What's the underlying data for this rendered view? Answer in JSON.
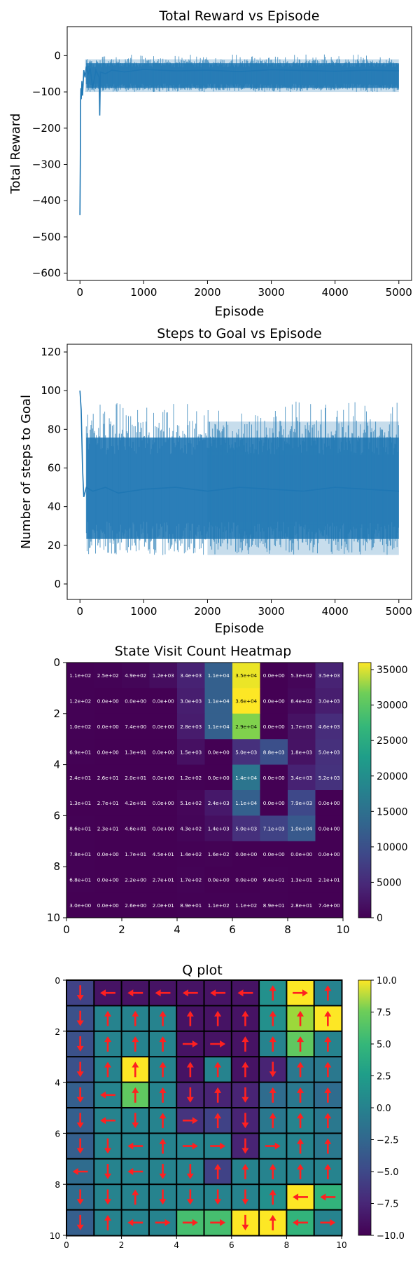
{
  "chart_data": [
    {
      "type": "line",
      "title": "Total Reward vs Episode",
      "xlabel": "Episode",
      "ylabel": "Total Reward",
      "xlim": [
        -200,
        5200
      ],
      "ylim": [
        -620,
        80
      ],
      "xticks": [
        0,
        1000,
        2000,
        3000,
        4000,
        5000
      ],
      "yticks": [
        0,
        -100,
        -200,
        -300,
        -400,
        -500,
        -600
      ],
      "color": "#1f77b4",
      "series": [
        {
          "x": [
            0,
            5,
            10,
            15,
            20,
            25,
            30,
            40,
            50,
            60,
            80,
            100,
            130,
            160,
            200,
            250,
            300,
            310,
            320,
            400,
            500,
            700,
            1000,
            1500,
            2000,
            2500,
            3000,
            3500,
            4000,
            4500,
            5000
          ],
          "y": [
            -440,
            -300,
            -130,
            -90,
            -120,
            -100,
            -70,
            -110,
            -80,
            -40,
            -60,
            -30,
            -50,
            -35,
            -90,
            -40,
            -60,
            -165,
            -45,
            -50,
            -40,
            -45,
            -38,
            -42,
            -40,
            -44,
            -39,
            -41,
            -43,
            -40,
            -42
          ],
          "band_upper": -10,
          "band_lower": -100
        }
      ]
    },
    {
      "type": "line",
      "title": "Steps to Goal vs Episode",
      "xlabel": "Episode",
      "ylabel": "Number of steps to Goal",
      "xlim": [
        -200,
        5200
      ],
      "ylim": [
        -8,
        124
      ],
      "xticks": [
        0,
        1000,
        2000,
        3000,
        4000,
        5000
      ],
      "yticks": [
        0,
        20,
        40,
        60,
        80,
        100,
        120
      ],
      "color": "#1f77b4",
      "series": [
        {
          "x": [
            0,
            20,
            40,
            60,
            100,
            200,
            400,
            600,
            1000,
            1500,
            2000,
            2500,
            3000,
            3500,
            4000,
            4500,
            5000
          ],
          "y": [
            100,
            90,
            60,
            45,
            50,
            48,
            50,
            47,
            49,
            50,
            48,
            50,
            49,
            48,
            50,
            49,
            48
          ],
          "band_upper": 84,
          "band_lower": 15
        }
      ]
    },
    {
      "type": "heatmap",
      "title": "State Visit Count Heatmap",
      "xlim": [
        0,
        10
      ],
      "ylim": [
        10,
        0
      ],
      "xticks": [
        0,
        2,
        4,
        6,
        8,
        10
      ],
      "yticks": [
        0,
        2,
        4,
        6,
        8,
        10
      ],
      "colorbar_ticks": [
        0,
        5000,
        10000,
        15000,
        20000,
        25000,
        30000,
        35000
      ],
      "vmin": 0,
      "vmax": 36000,
      "values": [
        [
          110,
          250,
          490,
          1200,
          3400,
          11000,
          35000,
          0,
          530,
          3500
        ],
        [
          120,
          0,
          0,
          0,
          3000,
          11000,
          36000,
          0,
          840,
          3000
        ],
        [
          100,
          0,
          7.4,
          0,
          2800,
          11000,
          29000,
          0,
          1700,
          4600
        ],
        [
          69,
          0,
          13,
          0,
          1500,
          0,
          5000,
          8800,
          1800,
          5000
        ],
        [
          24,
          26,
          20,
          0,
          120,
          0,
          14000,
          0,
          3400,
          5200
        ],
        [
          13,
          27,
          42,
          0,
          510,
          2400,
          11000,
          0,
          7900,
          0
        ],
        [
          86,
          23,
          46,
          0,
          430,
          1400,
          5000,
          7100,
          10000,
          0
        ],
        [
          78,
          0,
          17,
          45,
          140,
          160,
          0,
          0,
          0,
          0
        ],
        [
          68,
          0,
          2.2,
          27,
          170,
          0,
          0,
          94,
          13,
          21
        ],
        [
          3,
          0,
          2.6,
          20,
          89,
          110,
          110,
          89,
          28,
          7.4
        ]
      ],
      "labels": [
        [
          "1.1e+02",
          "2.5e+02",
          "4.9e+02",
          "1.2e+03",
          "3.4e+03",
          "1.1e+04",
          "3.5e+04",
          "0.0e+00",
          "5.3e+02",
          "3.5e+03"
        ],
        [
          "1.2e+02",
          "0.0e+00",
          "0.0e+00",
          "0.0e+00",
          "3.0e+03",
          "1.1e+04",
          "3.6e+04",
          "0.0e+00",
          "8.4e+02",
          "3.0e+03"
        ],
        [
          "1.0e+02",
          "0.0e+00",
          "7.4e+00",
          "0.0e+00",
          "2.8e+03",
          "1.1e+04",
          "2.9e+04",
          "0.0e+00",
          "1.7e+03",
          "4.6e+03"
        ],
        [
          "6.9e+01",
          "0.0e+00",
          "1.3e+01",
          "0.0e+00",
          "1.5e+03",
          "0.0e+00",
          "5.0e+03",
          "8.8e+03",
          "1.8e+03",
          "5.0e+03"
        ],
        [
          "2.4e+01",
          "2.6e+01",
          "2.0e+01",
          "0.0e+00",
          "1.2e+02",
          "0.0e+00",
          "1.4e+04",
          "0.0e+00",
          "3.4e+03",
          "5.2e+03"
        ],
        [
          "1.3e+01",
          "2.7e+01",
          "4.2e+01",
          "0.0e+00",
          "5.1e+02",
          "2.4e+03",
          "1.1e+04",
          "0.0e+00",
          "7.9e+03",
          "0.0e+00"
        ],
        [
          "8.6e+01",
          "2.3e+01",
          "4.6e+01",
          "0.0e+00",
          "4.3e+02",
          "1.4e+03",
          "5.0e+03",
          "7.1e+03",
          "1.0e+04",
          "0.0e+00"
        ],
        [
          "7.8e+01",
          "0.0e+00",
          "1.7e+01",
          "4.5e+01",
          "1.4e+02",
          "1.6e+02",
          "0.0e+00",
          "0.0e+00",
          "0.0e+00",
          "0.0e+00"
        ],
        [
          "6.8e+01",
          "0.0e+00",
          "2.2e+00",
          "2.7e+01",
          "1.7e+02",
          "0.0e+00",
          "0.0e+00",
          "9.4e+01",
          "1.3e+01",
          "2.1e+01"
        ],
        [
          "3.0e+00",
          "0.0e+00",
          "2.6e+00",
          "2.0e+01",
          "8.9e+01",
          "1.1e+02",
          "1.1e+02",
          "8.9e+01",
          "2.8e+01",
          "7.4e+00"
        ]
      ],
      "colormap": "viridis"
    },
    {
      "type": "heatmap",
      "title": "Q plot",
      "xlim": [
        0,
        10
      ],
      "ylim": [
        10,
        0
      ],
      "xticks": [
        0,
        2,
        4,
        6,
        8,
        10
      ],
      "yticks": [
        0,
        2,
        4,
        6,
        8,
        10
      ],
      "colorbar_ticks": [
        10.0,
        7.5,
        5.0,
        2.5,
        0.0,
        -2.5,
        -5.0,
        -7.5,
        -10.0
      ],
      "vmin": -10,
      "vmax": 10,
      "arrow_color": "#ff2020",
      "values": [
        [
          -6,
          -9,
          -9,
          -9,
          -9,
          -9,
          -9,
          0,
          10,
          -1
        ],
        [
          -5,
          -1,
          -1,
          -1,
          -9,
          -9,
          -9,
          0,
          7,
          10
        ],
        [
          -5,
          -1,
          -1,
          -1,
          -9,
          -9,
          -9,
          -1,
          5,
          -1
        ],
        [
          -5,
          -1,
          10,
          -1,
          -9,
          -1,
          -9,
          -8,
          -2,
          -2
        ],
        [
          -4,
          -1,
          5,
          -1,
          -8,
          -8,
          -8,
          -3,
          -2,
          -3
        ],
        [
          -4,
          -1,
          -1,
          -1,
          -7,
          -6,
          -8,
          -2,
          -1,
          -2
        ],
        [
          -4,
          -1,
          -1,
          -1,
          -1,
          -1,
          -8,
          -1,
          -1,
          -2
        ],
        [
          -3,
          -1,
          -1,
          -1,
          -1,
          -6,
          -1,
          -1,
          -1,
          -1
        ],
        [
          -3,
          -1,
          -1,
          -1,
          -1,
          -1,
          -1,
          0,
          10,
          3
        ],
        [
          -4,
          -1,
          -1,
          -1,
          4,
          4,
          10,
          10,
          3,
          -1
        ]
      ],
      "arrows": [
        [
          "down",
          "left",
          "left",
          "left",
          "left",
          "left",
          "left",
          "up",
          "right",
          "up"
        ],
        [
          "down",
          "up",
          "up",
          "up",
          "up",
          "up",
          "up",
          "up",
          "up",
          "up"
        ],
        [
          "down",
          "up",
          "up",
          "up",
          "right",
          "right",
          "up",
          "up",
          "up",
          "up"
        ],
        [
          "down",
          "up",
          "up",
          "up",
          "up",
          "up",
          "up",
          "down",
          "up",
          "up"
        ],
        [
          "down",
          "left",
          "up",
          "up",
          "down",
          "up",
          "down",
          "up",
          "up",
          "up"
        ],
        [
          "down",
          "left",
          "down",
          "up",
          "right",
          "up",
          "down",
          "up",
          "up",
          "up"
        ],
        [
          "down",
          "down",
          "left",
          "up",
          "right",
          "right",
          "down",
          "right",
          "up",
          "up"
        ],
        [
          "left",
          "down",
          "left",
          "down",
          "down",
          "up",
          "up",
          "up",
          "up",
          "up"
        ],
        [
          "down",
          "down",
          "up",
          "down",
          "down",
          "down",
          "down",
          "up",
          "left",
          "left"
        ],
        [
          "down",
          "up",
          "left",
          "right",
          "right",
          "right",
          "down",
          "up",
          "left",
          "right"
        ]
      ],
      "colormap": "viridis"
    }
  ]
}
